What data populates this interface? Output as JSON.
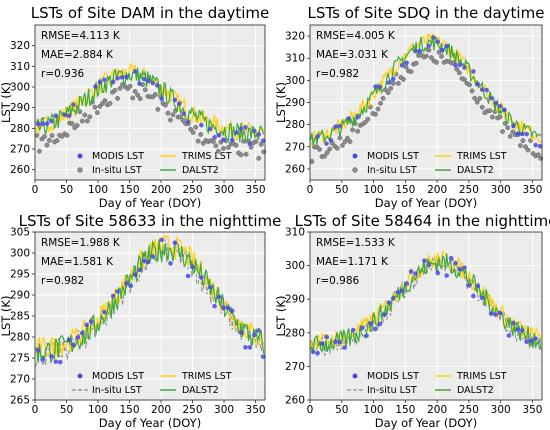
{
  "legend_labels": {
    "modis": "MODIS LST",
    "insitu": "In-situ LST",
    "trims": "TRIMS LST",
    "dalst2": "DALST2"
  },
  "colors": {
    "modis": "#4a4ae0",
    "insitu": "#8c8c8c",
    "trims": "#ffd21a",
    "dalst2": "#3ea83a",
    "plot_bg": "#ececec",
    "grid": "#ffffff"
  },
  "chart_data": [
    {
      "type": "line",
      "title": "LSTs of Site DAM in the daytime",
      "xlabel": "Day of Year (DOY)",
      "ylabel": "LST (K)",
      "xlim": [
        0,
        365
      ],
      "ylim": [
        255,
        330
      ],
      "xticks": [
        0,
        50,
        100,
        150,
        200,
        250,
        300,
        350
      ],
      "yticks": [
        260,
        270,
        280,
        290,
        300,
        310,
        320
      ],
      "stats": [
        "RMSE=4.113 K",
        "MAE=2.884 K",
        "r=0.936"
      ],
      "legend": [
        "MODIS LST",
        "In-situ LST",
        "TRIMS LST",
        "DALST2"
      ],
      "insitu_style": "points",
      "series_profile": {
        "baseline": 277,
        "peak": 306,
        "peak_doy": 150,
        "width": 95,
        "noise": 4
      },
      "series": [
        {
          "name": "MODIS LST",
          "style": "points"
        },
        {
          "name": "In-situ LST",
          "style": "points"
        },
        {
          "name": "TRIMS LST",
          "style": "line"
        },
        {
          "name": "DALST2",
          "style": "line"
        }
      ],
      "grid": true,
      "legend_position": "lower-center"
    },
    {
      "type": "line",
      "title": "LSTs of Site SDQ in the daytime",
      "xlabel": "Day of Year (DOY)",
      "ylabel": "LST (K)",
      "xlim": [
        0,
        365
      ],
      "ylim": [
        255,
        325
      ],
      "xticks": [
        0,
        50,
        100,
        150,
        200,
        250,
        300,
        350
      ],
      "yticks": [
        260,
        270,
        280,
        290,
        300,
        310,
        320
      ],
      "stats": [
        "RMSE=4.005 K",
        "MAE=3.031 K",
        "r=0.982"
      ],
      "legend": [
        "MODIS LST",
        "In-situ LST",
        "TRIMS LST",
        "DALST2"
      ],
      "insitu_style": "points",
      "series_profile": {
        "baseline": 271,
        "peak": 317,
        "peak_doy": 190,
        "width": 105,
        "noise": 3
      },
      "series": [
        {
          "name": "MODIS LST",
          "style": "points"
        },
        {
          "name": "In-situ LST",
          "style": "points"
        },
        {
          "name": "TRIMS LST",
          "style": "line"
        },
        {
          "name": "DALST2",
          "style": "line"
        }
      ],
      "grid": true,
      "legend_position": "lower-center"
    },
    {
      "type": "line",
      "title": "LSTs of Site 58633 in the nighttime",
      "xlabel": "Day of Year (DOY)",
      "ylabel": "LST (K)",
      "xlim": [
        0,
        365
      ],
      "ylim": [
        265,
        305
      ],
      "xticks": [
        0,
        50,
        100,
        150,
        200,
        250,
        300,
        350
      ],
      "yticks": [
        265,
        270,
        275,
        280,
        285,
        290,
        295,
        300,
        305
      ],
      "stats": [
        "RMSE=1.988 K",
        "MAE=1.581 K",
        "r=0.982"
      ],
      "legend": [
        "MODIS LST",
        "In-situ LST",
        "TRIMS LST",
        "DALST2"
      ],
      "insitu_style": "dashed",
      "series_profile": {
        "baseline": 276,
        "peak": 301,
        "peak_doy": 210,
        "width": 100,
        "noise": 2.5
      },
      "series": [
        {
          "name": "MODIS LST",
          "style": "points"
        },
        {
          "name": "In-situ LST",
          "style": "dashed"
        },
        {
          "name": "TRIMS LST",
          "style": "line"
        },
        {
          "name": "DALST2",
          "style": "line"
        }
      ],
      "grid": true,
      "legend_position": "lower-center"
    },
    {
      "type": "line",
      "title": "LSTs of Site 58464 in the nighttime",
      "xlabel": "Day of Year (DOY)",
      "ylabel": "LST (K)",
      "xlim": [
        0,
        365
      ],
      "ylim": [
        260,
        310
      ],
      "xticks": [
        0,
        50,
        100,
        150,
        200,
        250,
        300,
        350
      ],
      "yticks": [
        260,
        270,
        280,
        290,
        300,
        310
      ],
      "stats": [
        "RMSE=1.533 K",
        "MAE=1.171 K",
        "r=0.986"
      ],
      "legend": [
        "MODIS LST",
        "In-situ LST",
        "TRIMS LST",
        "DALST2"
      ],
      "insitu_style": "dashed",
      "series_profile": {
        "baseline": 276,
        "peak": 301,
        "peak_doy": 205,
        "width": 95,
        "noise": 2.5
      },
      "series": [
        {
          "name": "MODIS LST",
          "style": "points"
        },
        {
          "name": "In-situ LST",
          "style": "dashed"
        },
        {
          "name": "TRIMS LST",
          "style": "line"
        },
        {
          "name": "DALST2",
          "style": "line"
        }
      ],
      "grid": true,
      "legend_position": "lower-center"
    }
  ]
}
